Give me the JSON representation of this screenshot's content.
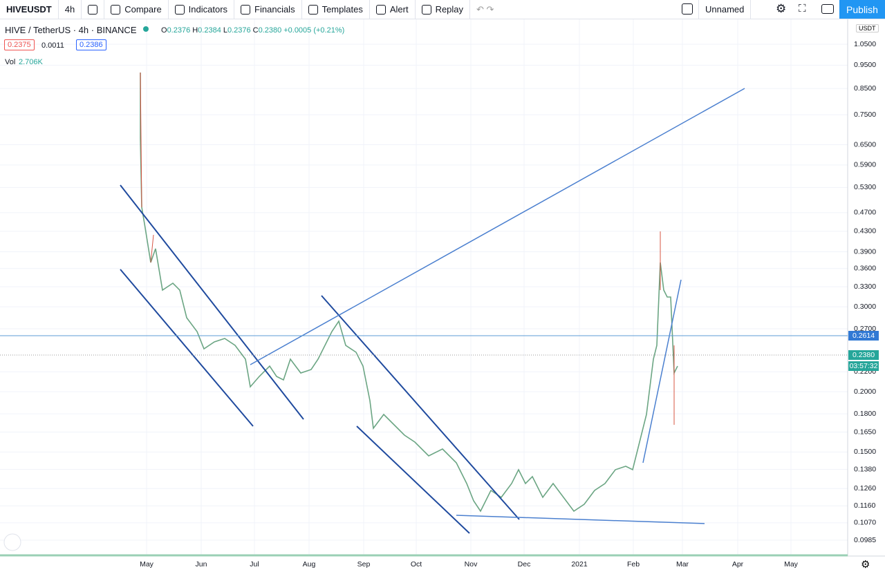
{
  "toolbar": {
    "symbol": "HIVEUSDT",
    "interval": "4h",
    "buttons": [
      "Compare",
      "Indicators",
      "Financials",
      "Templates",
      "Alert",
      "Replay"
    ],
    "layout_name": "Unnamed",
    "publish": "Publish"
  },
  "legend": {
    "title": "HIVE / TetherUS · 4h · BINANCE",
    "ohlc": [
      {
        "label": "O",
        "value": "0.2376"
      },
      {
        "label": "H",
        "value": "0.2384"
      },
      {
        "label": "L",
        "value": "0.2376"
      },
      {
        "label": "C",
        "value": "0.2380"
      }
    ],
    "change": "+0.0005 (+0.21%)",
    "bid": "0.2375",
    "spread": "0.0011",
    "ask": "0.2386",
    "volume_label": "Vol",
    "volume": "2.706K"
  },
  "price_axis": {
    "currency": "USDT",
    "labels": [
      "1.0500",
      "0.9500",
      "0.8500",
      "0.7500",
      "0.6500",
      "0.5900",
      "0.5300",
      "0.4700",
      "0.4300",
      "0.3900",
      "0.3600",
      "0.3300",
      "0.3000",
      "0.2700",
      "0.2200",
      "0.2000",
      "0.1800",
      "0.1650",
      "0.1500",
      "0.1380",
      "0.1260",
      "0.1160",
      "0.1070",
      "0.0985"
    ],
    "horizontal_line": "0.2614",
    "last_price": "0.2380",
    "countdown": "03:57:32"
  },
  "time_axis": {
    "labels": [
      "May",
      "Jun",
      "Jul",
      "Aug",
      "Sep",
      "Oct",
      "Nov",
      "Dec",
      "2021",
      "Feb",
      "Mar",
      "Apr",
      "May"
    ]
  }
}
